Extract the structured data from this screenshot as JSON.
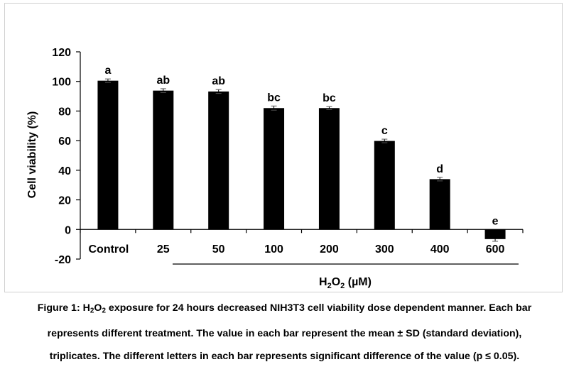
{
  "chart_data": {
    "type": "bar",
    "categories": [
      "Control",
      "25",
      "50",
      "100",
      "200",
      "300",
      "400",
      "600"
    ],
    "values": [
      100.5,
      93.8,
      93.2,
      82.0,
      82.0,
      59.8,
      34.0,
      -6.5
    ],
    "errors": [
      1.2,
      1.3,
      1.3,
      1.4,
      1.0,
      1.2,
      1.2,
      1.5
    ],
    "significance_letters": [
      "a",
      "ab",
      "ab",
      "bc",
      "bc",
      "c",
      "d",
      "e"
    ],
    "ylabel": "Cell viability (%)",
    "xlabel": {
      "prefix": "H",
      "sub": "2",
      "mid": "O",
      "sub2": "2",
      "suffix": " (µM)"
    },
    "ylim": [
      -20,
      120
    ],
    "yticks": [
      -20,
      0,
      20,
      40,
      60,
      80,
      100,
      120
    ],
    "bar_color": "#000000",
    "grid": false
  },
  "caption": {
    "line1_a": "Figure 1:  H",
    "line1_sub1": "2",
    "line1_b": "O",
    "line1_sub2": "2",
    "line1_c": " exposure for 24 hours decreased NIH3T3 cell viability dose dependent manner. Each bar",
    "line2": "represents different treatment. The value in each bar represent the mean ± SD (standard deviation),",
    "line3": "triplicates. The different letters in each bar represents significant difference of the value (p ≤ 0.05)."
  }
}
